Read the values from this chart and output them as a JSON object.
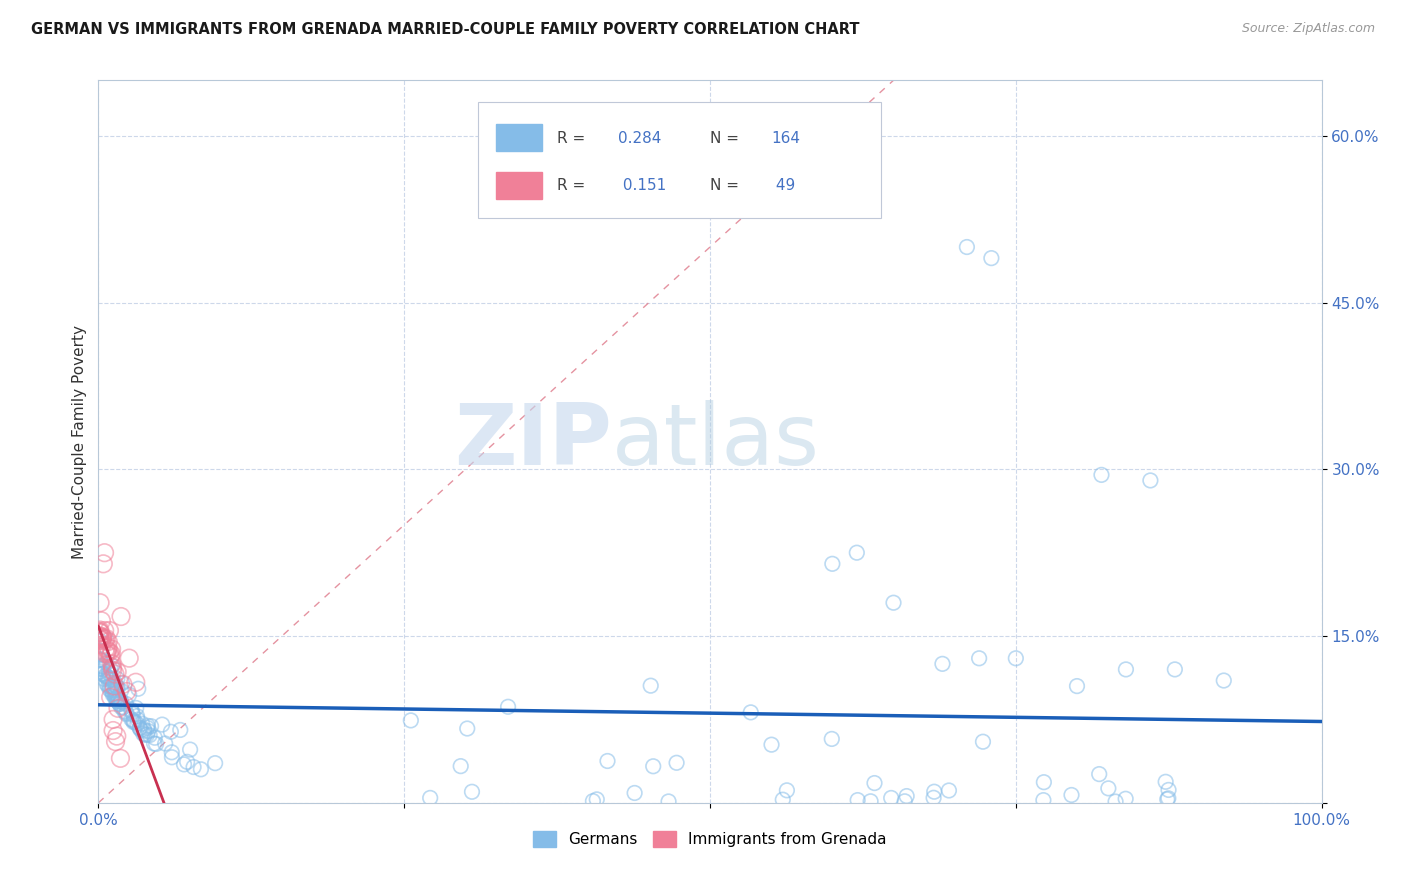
{
  "title": "GERMAN VS IMMIGRANTS FROM GRENADA MARRIED-COUPLE FAMILY POVERTY CORRELATION CHART",
  "source": "Source: ZipAtlas.com",
  "ylabel": "Married-Couple Family Poverty",
  "xlim": [
    0,
    1.0
  ],
  "ylim": [
    0,
    0.65
  ],
  "ytick_positions": [
    0.0,
    0.15,
    0.3,
    0.45,
    0.6
  ],
  "yticklabels": [
    "",
    "15.0%",
    "30.0%",
    "45.0%",
    "60.0%"
  ],
  "xtick_positions": [
    0.0,
    0.25,
    0.5,
    0.75,
    1.0
  ],
  "xticklabels": [
    "0.0%",
    "",
    "",
    "",
    "100.0%"
  ],
  "german_color": "#85bce8",
  "grenada_color": "#f08098",
  "german_R": 0.284,
  "german_N": 164,
  "grenada_R": 0.151,
  "grenada_N": 49,
  "trend_line_color_german": "#1a5eb8",
  "trend_line_color_grenada": "#c83050",
  "diagonal_color": "#e08090",
  "watermark_zip": "ZIP",
  "watermark_atlas": "atlas",
  "background_color": "#ffffff",
  "grid_color": "#c8d4e8",
  "tick_color": "#4472c4",
  "marker_size_german": 110,
  "marker_size_grenada": 160,
  "marker_lw": 1.2,
  "marker_alpha": 0.55
}
